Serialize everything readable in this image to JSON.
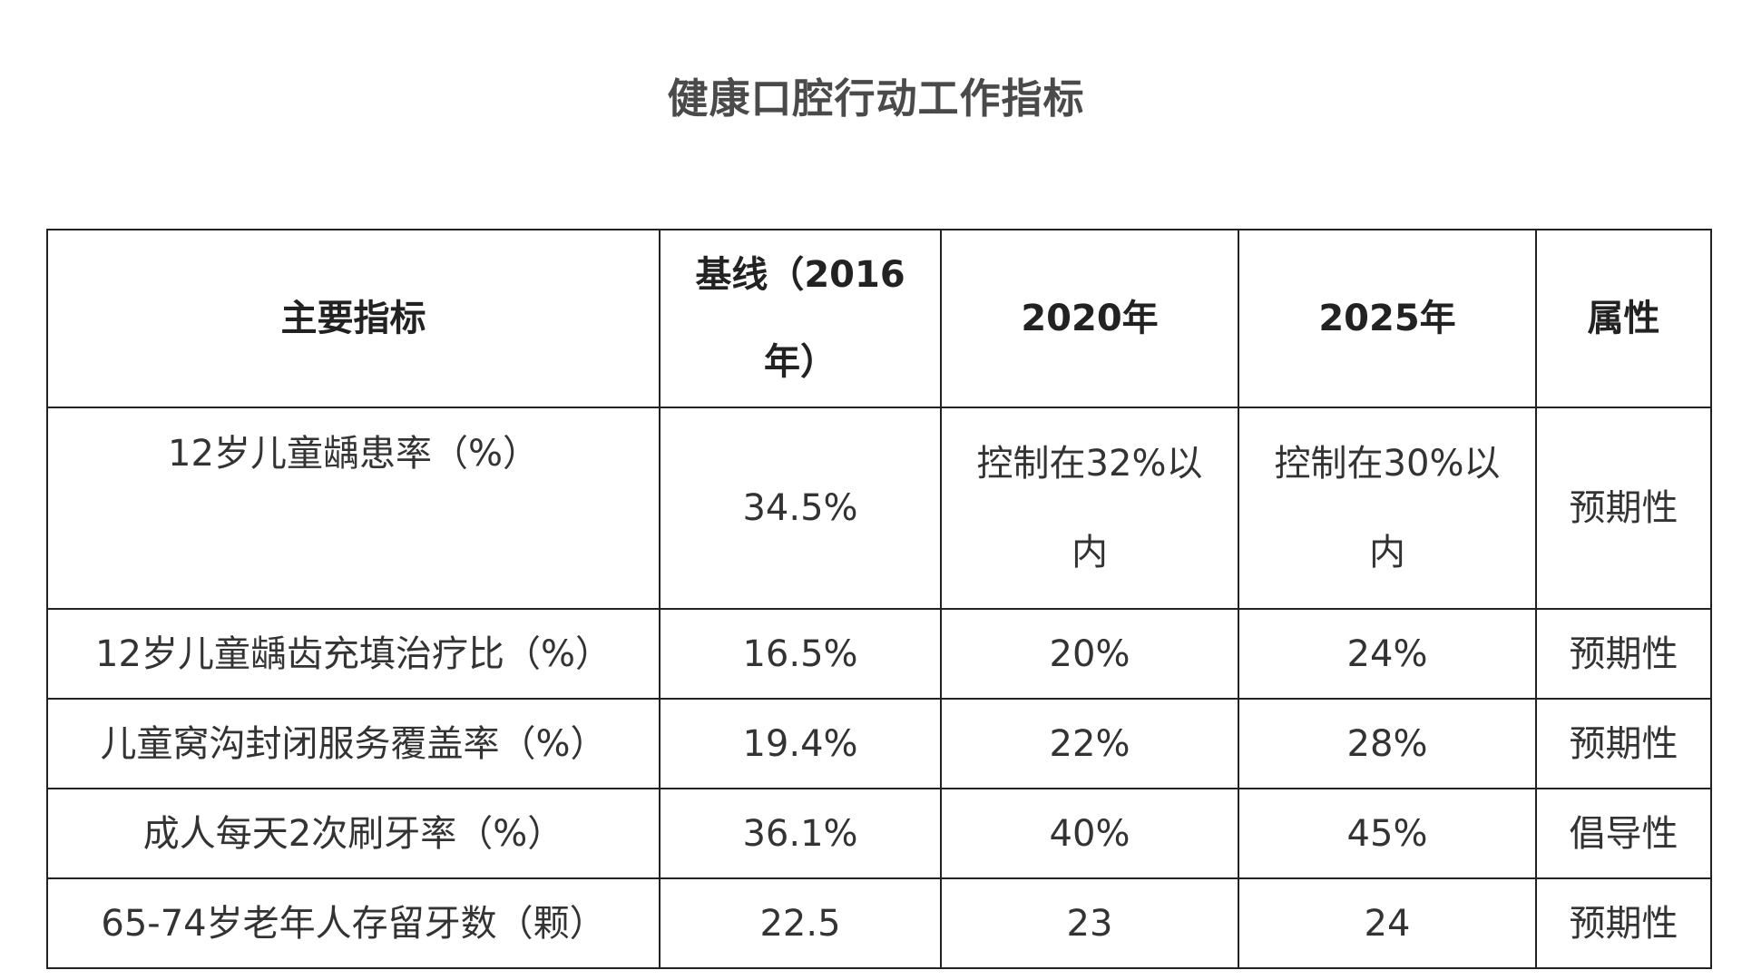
{
  "title": "健康口腔行动工作指标",
  "table": {
    "headers": {
      "indicator": "主要指标",
      "baseline": "基线（2016年）",
      "y2020": "2020年",
      "y2025": "2025年",
      "attribute": "属性"
    },
    "rows": [
      {
        "indicator": "12岁儿童龋患率（%）",
        "baseline": "34.5%",
        "y2020": "控制在32%以内",
        "y2025": "控制在30%以内",
        "attribute": "预期性"
      },
      {
        "indicator": "12岁儿童龋齿充填治疗比（%）",
        "baseline": "16.5%",
        "y2020": "20%",
        "y2025": "24%",
        "attribute": "预期性"
      },
      {
        "indicator": "儿童窝沟封闭服务覆盖率（%）",
        "baseline": "19.4%",
        "y2020": "22%",
        "y2025": "28%",
        "attribute": "预期性"
      },
      {
        "indicator": "成人每天2次刷牙率（%）",
        "baseline": "36.1%",
        "y2020": "40%",
        "y2025": "45%",
        "attribute": "倡导性"
      },
      {
        "indicator": "65-74岁老年人存留牙数（颗）",
        "baseline": "22.5",
        "y2020": "23",
        "y2025": "24",
        "attribute": "预期性"
      }
    ]
  }
}
